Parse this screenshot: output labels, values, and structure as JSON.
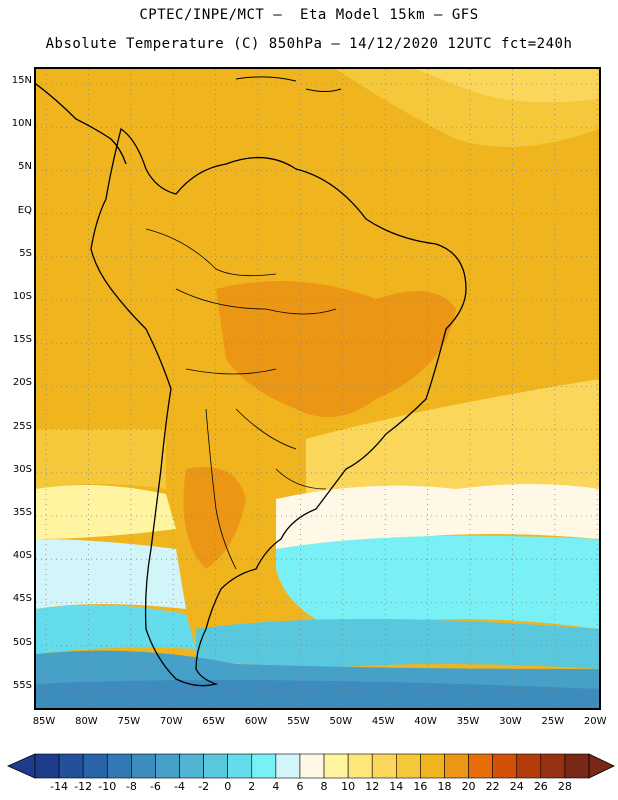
{
  "header": {
    "line1": "CPTEC/INPE/MCT —  Eta Model 15km — GFS",
    "line2": "Absolute Temperature (C) 850hPa — 14/12/2020 12UTC fct=240h"
  },
  "map": {
    "lat_labels": [
      "15N",
      "10N",
      "5N",
      "EQ",
      "5S",
      "10S",
      "15S",
      "20S",
      "25S",
      "30S",
      "35S",
      "40S",
      "45S",
      "50S",
      "55S"
    ],
    "lon_labels": [
      "85W",
      "80W",
      "75W",
      "70W",
      "65W",
      "60W",
      "55W",
      "50W",
      "45W",
      "40W",
      "35W",
      "30W",
      "25W",
      "20W"
    ],
    "grid_lines": "dotted"
  },
  "colorbar": {
    "labels": [
      "-14",
      "-12",
      "-10",
      "-8",
      "-6",
      "-4",
      "-2",
      "0",
      "2",
      "4",
      "6",
      "8",
      "10",
      "12",
      "14",
      "16",
      "18",
      "20",
      "22",
      "24",
      "26",
      "28"
    ],
    "colors": [
      "#1e3c8c",
      "#23509b",
      "#2a64aa",
      "#3278b4",
      "#3c8cbe",
      "#46a0c8",
      "#50b4d2",
      "#5ac8dc",
      "#64dceb",
      "#78f0f5",
      "#d2f5fa",
      "#fff8e6",
      "#fff5a0",
      "#ffe678",
      "#fad75a",
      "#f5c83c",
      "#f0b41e",
      "#eb9614",
      "#e66e0a",
      "#d25008",
      "#b43c0a",
      "#963214",
      "#782814"
    ]
  }
}
